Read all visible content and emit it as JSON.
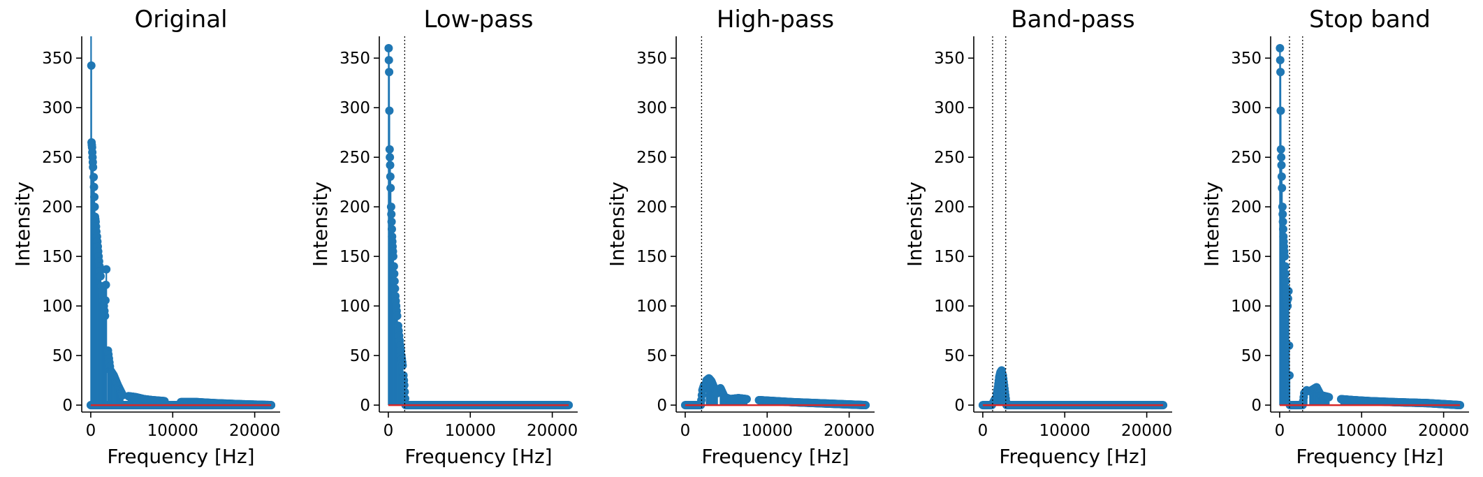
{
  "chart_data": [
    {
      "type": "stem",
      "title": "Original",
      "xlabel": "Frequency [Hz]",
      "ylabel": "Intensity",
      "xlim": [
        -1100,
        23100
      ],
      "ylim": [
        -7,
        372
      ],
      "xticks": [
        0,
        10000,
        20000
      ],
      "xtick_labels": [
        "0",
        "10000",
        "20000"
      ],
      "yticks": [
        0,
        50,
        100,
        150,
        200,
        250,
        300,
        350
      ],
      "ytick_labels": [
        "0",
        "50",
        "100",
        "150",
        "200",
        "250",
        "300",
        "350"
      ],
      "cutoffs": [],
      "color": "#1f77b4",
      "baseline_color": "#d62728",
      "series": [
        {
          "x": [
            0,
            2000,
            4000,
            10000,
            22000
          ],
          "y": [
            0,
            0,
            0,
            0,
            0
          ]
        },
        {
          "x": [
            40,
            100,
            160,
            220,
            280
          ],
          "y": [
            420,
            265,
            260,
            250,
            240
          ]
        },
        {
          "x": [
            360,
            440,
            520,
            600,
            680
          ],
          "y": [
            230,
            210,
            190,
            185,
            175
          ]
        },
        {
          "x": [
            760,
            860,
            960,
            1080,
            1200
          ],
          "y": [
            170,
            160,
            150,
            140,
            130
          ]
        },
        {
          "x": [
            1320,
            1460,
            1600,
            1740,
            1900
          ],
          "y": [
            120,
            110,
            100,
            90,
            137
          ]
        },
        {
          "x": [
            2100,
            2400,
            2800,
            3300,
            3900
          ],
          "y": [
            55,
            35,
            30,
            20,
            10
          ]
        },
        {
          "x": [
            4600,
            5500,
            6500,
            7500,
            9000
          ],
          "y": [
            9,
            8,
            6,
            5,
            4
          ]
        },
        {
          "x": [
            11000,
            13000,
            15000,
            18000,
            22000
          ],
          "y": [
            3,
            3,
            2,
            1,
            0
          ]
        }
      ]
    },
    {
      "type": "stem",
      "title": "Low-pass",
      "xlabel": "Frequency [Hz]",
      "ylabel": "Intensity",
      "xlim": [
        -1100,
        23100
      ],
      "ylim": [
        -7,
        372
      ],
      "xticks": [
        0,
        10000,
        20000
      ],
      "xtick_labels": [
        "0",
        "10000",
        "20000"
      ],
      "yticks": [
        0,
        50,
        100,
        150,
        200,
        250,
        300,
        350
      ],
      "ytick_labels": [
        "0",
        "50",
        "100",
        "150",
        "200",
        "250",
        "300",
        "350"
      ],
      "cutoffs": [
        2000
      ],
      "color": "#1f77b4",
      "baseline_color": "#d62728",
      "series": [
        {
          "x": [
            40,
            100,
            160,
            220,
            280
          ],
          "y": [
            360,
            336,
            258,
            242,
            219
          ]
        },
        {
          "x": [
            340,
            400,
            460,
            520,
            600
          ],
          "y": [
            200,
            185,
            170,
            160,
            150
          ]
        },
        {
          "x": [
            680,
            760,
            860,
            960,
            1080
          ],
          "y": [
            140,
            125,
            110,
            100,
            90
          ]
        },
        {
          "x": [
            1200,
            1320,
            1460,
            1600,
            1750
          ],
          "y": [
            80,
            70,
            60,
            50,
            40
          ]
        },
        {
          "x": [
            1850,
            1950,
            2100,
            5000,
            22000
          ],
          "y": [
            30,
            20,
            0,
            0,
            0
          ]
        }
      ]
    },
    {
      "type": "stem",
      "title": "High-pass",
      "xlabel": "Frequency [Hz]",
      "ylabel": "Intensity",
      "xlim": [
        -1100,
        23100
      ],
      "ylim": [
        -7,
        372
      ],
      "xticks": [
        0,
        10000,
        20000
      ],
      "xtick_labels": [
        "0",
        "10000",
        "20000"
      ],
      "yticks": [
        0,
        50,
        100,
        150,
        200,
        250,
        300,
        350
      ],
      "ytick_labels": [
        "0",
        "50",
        "100",
        "150",
        "200",
        "250",
        "300",
        "350"
      ],
      "cutoffs": [
        2000
      ],
      "color": "#1f77b4",
      "baseline_color": "#d62728",
      "series": [
        {
          "x": [
            0,
            1000,
            1900,
            2100,
            2300
          ],
          "y": [
            0,
            0,
            0,
            15,
            20
          ]
        },
        {
          "x": [
            2600,
            2900,
            3200,
            3500,
            3900
          ],
          "y": [
            25,
            27,
            24,
            18,
            12
          ]
        },
        {
          "x": [
            4300,
            4800,
            5500,
            6500,
            7500
          ],
          "y": [
            17,
            8,
            6,
            7,
            6
          ]
        },
        {
          "x": [
            9000,
            11000,
            13000,
            16000,
            22000
          ],
          "y": [
            5,
            4,
            3,
            2,
            0
          ]
        }
      ]
    },
    {
      "type": "stem",
      "title": "Band-pass",
      "xlabel": "Frequency [Hz]",
      "ylabel": "Intensity",
      "xlim": [
        -1100,
        23100
      ],
      "ylim": [
        -7,
        372
      ],
      "xticks": [
        0,
        10000,
        20000
      ],
      "xtick_labels": [
        "0",
        "10000",
        "20000"
      ],
      "yticks": [
        0,
        50,
        100,
        150,
        200,
        250,
        300,
        350
      ],
      "ytick_labels": [
        "0",
        "50",
        "100",
        "150",
        "200",
        "250",
        "300",
        "350"
      ],
      "cutoffs": [
        1200,
        2800
      ],
      "color": "#1f77b4",
      "baseline_color": "#d62728",
      "series": [
        {
          "x": [
            0,
            600,
            1100,
            1300,
            1500
          ],
          "y": [
            0,
            0,
            0,
            3,
            6
          ]
        },
        {
          "x": [
            1700,
            1850,
            2000,
            2150,
            2300
          ],
          "y": [
            10,
            18,
            28,
            33,
            35
          ]
        },
        {
          "x": [
            2450,
            2600,
            2750,
            2900,
            22000
          ],
          "y": [
            30,
            20,
            10,
            0,
            0
          ]
        }
      ]
    },
    {
      "type": "stem",
      "title": "Stop band",
      "xlabel": "Frequency [Hz]",
      "ylabel": "Intensity",
      "xlim": [
        -1100,
        23100
      ],
      "ylim": [
        -7,
        372
      ],
      "xticks": [
        0,
        10000,
        20000
      ],
      "xtick_labels": [
        "0",
        "10000",
        "20000"
      ],
      "yticks": [
        0,
        50,
        100,
        150,
        200,
        250,
        300,
        350
      ],
      "ytick_labels": [
        "0",
        "50",
        "100",
        "150",
        "200",
        "250",
        "300",
        "350"
      ],
      "cutoffs": [
        1200,
        2800
      ],
      "color": "#1f77b4",
      "baseline_color": "#d62728",
      "series": [
        {
          "x": [
            40,
            100,
            160,
            220,
            280
          ],
          "y": [
            360,
            336,
            258,
            242,
            219
          ]
        },
        {
          "x": [
            340,
            400,
            460,
            520,
            600
          ],
          "y": [
            200,
            185,
            170,
            160,
            150
          ]
        },
        {
          "x": [
            680,
            760,
            860,
            960,
            1080
          ],
          "y": [
            140,
            125,
            110,
            100,
            115
          ]
        },
        {
          "x": [
            1150,
            1250,
            2800,
            3000,
            3300
          ],
          "y": [
            60,
            0,
            0,
            12,
            15
          ]
        },
        {
          "x": [
            3700,
            4100,
            4500,
            5000,
            6000
          ],
          "y": [
            14,
            16,
            18,
            10,
            8
          ]
        },
        {
          "x": [
            7500,
            9000,
            11000,
            14000,
            18000,
            22000
          ],
          "y": [
            6,
            5,
            4,
            3,
            2,
            0
          ]
        }
      ]
    }
  ]
}
